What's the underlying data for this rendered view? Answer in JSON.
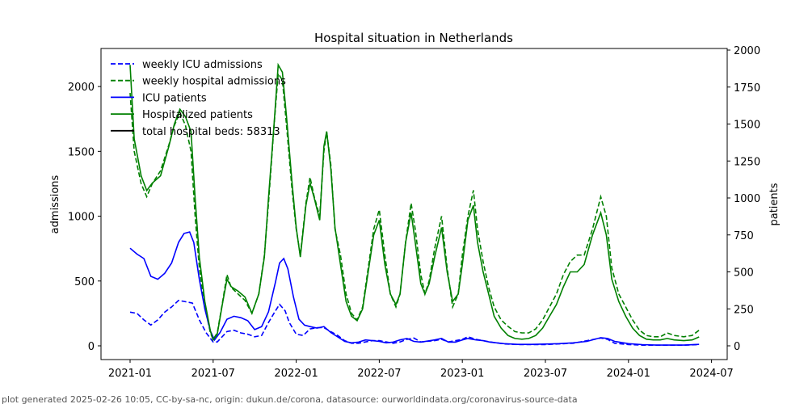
{
  "chart_data": {
    "type": "line",
    "title": "Hospital situation in Netherlands",
    "ylabel_left": "admissions",
    "ylabel_right": "patients",
    "ylim_left": [
      0,
      2250
    ],
    "ylim_right": [
      0,
      2000
    ],
    "x_unit": "months since 2021-01",
    "x_ticks": [
      0,
      6,
      12,
      18,
      24,
      30,
      36,
      42
    ],
    "x_tick_labels": [
      "2021-01",
      "2021-07",
      "2022-01",
      "2022-07",
      "2023-01",
      "2023-07",
      "2024-01",
      "2024-07"
    ],
    "y_left_ticks": [
      0,
      500,
      1000,
      1500,
      2000
    ],
    "y_right_ticks": [
      0,
      250,
      500,
      750,
      1000,
      1250,
      1500,
      1750,
      2000
    ],
    "legend": {
      "placement": "top-left",
      "entries": [
        "weekly ICU admissions",
        "weekly hospital admissions",
        "ICU patients",
        "Hospitalized patients",
        "total hospital beds: 58313"
      ]
    },
    "series": [
      {
        "name": "weekly ICU admissions",
        "axis": "left",
        "color": "#0000ff",
        "style": "dashed",
        "x": [
          0,
          0.5,
          1,
          1.5,
          2,
          2.5,
          3,
          3.5,
          4,
          4.5,
          5,
          5.5,
          6,
          6.3,
          7,
          7.5,
          8,
          8.5,
          9,
          9.5,
          10,
          10.5,
          10.8,
          11.2,
          11.5,
          12,
          12.5,
          13,
          13.5,
          14,
          14.5,
          15,
          15.5,
          16,
          16.5,
          17,
          17.5,
          18,
          18.5,
          19,
          19.5,
          20,
          20.5,
          21,
          22,
          22.5,
          23,
          24,
          24.4,
          25,
          25.5,
          26,
          27,
          28,
          29,
          30,
          31,
          32,
          33,
          34,
          34.5,
          35,
          36,
          37,
          38,
          39,
          40,
          41.1
        ],
        "values": [
          260,
          250,
          200,
          160,
          200,
          260,
          300,
          350,
          340,
          330,
          200,
          100,
          30,
          30,
          110,
          120,
          100,
          90,
          70,
          80,
          180,
          270,
          320,
          270,
          180,
          90,
          80,
          130,
          140,
          140,
          110,
          80,
          40,
          20,
          20,
          30,
          40,
          40,
          30,
          20,
          30,
          50,
          60,
          30,
          40,
          50,
          30,
          50,
          70,
          50,
          40,
          30,
          15,
          10,
          10,
          10,
          15,
          20,
          40,
          60,
          50,
          20,
          10,
          5,
          5,
          5,
          5,
          10
        ]
      },
      {
        "name": "weekly hospital admissions",
        "axis": "left",
        "color": "#008000",
        "style": "dashed",
        "x": [
          0,
          0.3,
          0.8,
          1.2,
          1.6,
          2.2,
          2.8,
          3.2,
          3.6,
          4,
          4.4,
          4.7,
          5,
          5.4,
          5.8,
          6,
          6.3,
          6.7,
          7,
          7.3,
          7.8,
          8.3,
          8.8,
          9.3,
          9.7,
          10,
          10.4,
          10.7,
          11,
          11.3,
          11.7,
          12,
          12.3,
          12.7,
          13,
          13.3,
          13.7,
          14,
          14.2,
          14.5,
          14.8,
          15.2,
          15.6,
          16,
          16.4,
          16.8,
          17.2,
          17.6,
          18,
          18.4,
          18.8,
          19.2,
          19.5,
          19.9,
          20.3,
          20.6,
          21,
          21.3,
          21.6,
          22,
          22.5,
          22.9,
          23.3,
          23.7,
          24,
          24.4,
          24.8,
          25.1,
          25.5,
          25.9,
          26.3,
          26.8,
          27.3,
          27.8,
          28.3,
          28.8,
          29.3,
          29.8,
          30.3,
          30.8,
          31.3,
          31.8,
          32.3,
          32.8,
          33.4,
          34,
          34.4,
          34.8,
          35.3,
          35.8,
          36.3,
          36.8,
          37.3,
          37.8,
          38.3,
          38.8,
          39.3,
          40,
          40.6,
          41.1
        ],
        "values": [
          1950,
          1500,
          1250,
          1150,
          1250,
          1350,
          1550,
          1700,
          1800,
          1700,
          1500,
          1000,
          600,
          300,
          100,
          50,
          100,
          350,
          550,
          450,
          400,
          350,
          250,
          400,
          700,
          1100,
          1700,
          2100,
          2050,
          1700,
          1200,
          900,
          700,
          1100,
          1300,
          1150,
          1000,
          1500,
          1650,
          1400,
          900,
          700,
          400,
          250,
          200,
          300,
          600,
          900,
          1050,
          700,
          400,
          300,
          400,
          800,
          1100,
          900,
          550,
          400,
          500,
          750,
          1000,
          600,
          300,
          400,
          700,
          1000,
          1200,
          900,
          650,
          450,
          300,
          200,
          150,
          110,
          100,
          100,
          130,
          200,
          300,
          400,
          550,
          650,
          700,
          700,
          900,
          1150,
          1000,
          600,
          400,
          300,
          200,
          120,
          80,
          70,
          70,
          100,
          80,
          70,
          80,
          120
        ]
      },
      {
        "name": "ICU patients",
        "axis": "right",
        "color": "#0000ff",
        "style": "solid",
        "x": [
          0,
          0.5,
          1,
          1.5,
          2,
          2.5,
          3,
          3.5,
          3.9,
          4.3,
          4.6,
          5,
          5.4,
          5.8,
          6.1,
          6.5,
          7,
          7.5,
          8,
          8.5,
          9,
          9.5,
          10,
          10.5,
          10.8,
          11.1,
          11.4,
          11.8,
          12.2,
          12.6,
          13,
          13.5,
          14,
          14.5,
          15,
          15.5,
          16,
          16.5,
          17,
          17.5,
          18,
          18.5,
          19,
          19.5,
          20,
          20.5,
          21,
          22,
          22.5,
          23,
          23.5,
          24,
          24.4,
          25,
          25.5,
          26,
          27,
          28,
          29,
          30,
          31,
          32,
          33,
          34,
          34.5,
          35,
          36,
          37,
          38,
          39,
          40,
          41.1
        ],
        "values": [
          660,
          620,
          590,
          470,
          450,
          490,
          560,
          700,
          760,
          770,
          700,
          450,
          250,
          100,
          40,
          90,
          180,
          200,
          190,
          170,
          110,
          130,
          230,
          430,
          560,
          590,
          520,
          330,
          180,
          140,
          130,
          120,
          130,
          90,
          60,
          30,
          20,
          25,
          40,
          35,
          30,
          20,
          25,
          40,
          50,
          30,
          25,
          40,
          50,
          25,
          25,
          40,
          50,
          40,
          35,
          25,
          15,
          10,
          10,
          12,
          15,
          20,
          30,
          55,
          50,
          30,
          15,
          8,
          5,
          5,
          5,
          10
        ]
      },
      {
        "name": "Hospitalized patients",
        "axis": "right",
        "color": "#008000",
        "style": "solid",
        "x": [
          0,
          0.3,
          0.8,
          1.2,
          1.6,
          2.2,
          2.8,
          3.2,
          3.6,
          4,
          4.4,
          4.7,
          5,
          5.4,
          5.8,
          6,
          6.3,
          6.7,
          7,
          7.3,
          7.8,
          8.3,
          8.8,
          9.3,
          9.7,
          10,
          10.4,
          10.7,
          11,
          11.3,
          11.7,
          12,
          12.3,
          12.7,
          13,
          13.3,
          13.7,
          14,
          14.2,
          14.5,
          14.8,
          15.2,
          15.6,
          16,
          16.4,
          16.8,
          17.2,
          17.6,
          18,
          18.4,
          18.8,
          19.2,
          19.5,
          19.9,
          20.3,
          20.6,
          21,
          21.3,
          21.6,
          22,
          22.5,
          22.9,
          23.3,
          23.7,
          24,
          24.4,
          24.8,
          25.1,
          25.5,
          25.9,
          26.3,
          26.8,
          27.3,
          27.8,
          28.3,
          28.8,
          29.3,
          29.8,
          30.3,
          30.8,
          31.3,
          31.8,
          32.3,
          32.8,
          33.4,
          34,
          34.4,
          34.8,
          35.3,
          35.8,
          36.3,
          36.8,
          37.3,
          37.8,
          38.3,
          38.8,
          39.3,
          40,
          40.6,
          41.1
        ],
        "values": [
          1900,
          1400,
          1150,
          1050,
          1100,
          1150,
          1350,
          1500,
          1600,
          1550,
          1450,
          1000,
          600,
          300,
          100,
          40,
          80,
          300,
          450,
          400,
          370,
          330,
          220,
          350,
          600,
          1000,
          1500,
          1900,
          1850,
          1550,
          1100,
          800,
          600,
          950,
          1100,
          1000,
          850,
          1350,
          1450,
          1200,
          800,
          550,
          300,
          200,
          170,
          250,
          500,
          750,
          850,
          550,
          350,
          280,
          350,
          700,
          900,
          700,
          420,
          350,
          420,
          600,
          800,
          500,
          300,
          350,
          550,
          850,
          950,
          700,
          500,
          350,
          200,
          120,
          70,
          50,
          45,
          50,
          70,
          120,
          200,
          280,
          400,
          500,
          500,
          550,
          750,
          900,
          750,
          450,
          300,
          200,
          120,
          70,
          45,
          40,
          40,
          50,
          40,
          35,
          40,
          60
        ]
      }
    ]
  },
  "footer": "plot generated 2025-02-26 10:05, CC-by-sa-nc, origin: dukun.de/corona, datasource: ourworldindata.org/coronavirus-source-data"
}
